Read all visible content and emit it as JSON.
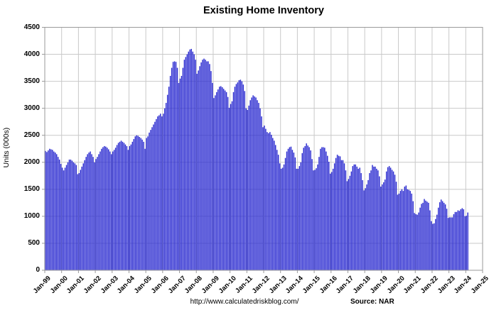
{
  "title": "Existing Home Inventory",
  "footer": {
    "url": "http://www.calculatedriskblog.com/",
    "source": "Source: NAR"
  },
  "chart_data": {
    "type": "bar",
    "title": "Existing Home Inventory",
    "xlabel": "",
    "ylabel": "Units (000s)",
    "ylim": [
      0,
      4500
    ],
    "ytick_step": 500,
    "y_tick_labels": [
      "0",
      "500",
      "1000",
      "1500",
      "2000",
      "2500",
      "3000",
      "3500",
      "4000",
      "4500"
    ],
    "x_tick_labels": [
      "Jan-99",
      "Jan-00",
      "Jan-01",
      "Jan-02",
      "Jan-03",
      "Jan-04",
      "Jan-05",
      "Jan-06",
      "Jan-07",
      "Jan-08",
      "Jan-09",
      "Jan-10",
      "Jan-11",
      "Jan-12",
      "Jan-13",
      "Jan-14",
      "Jan-15",
      "Jan-16",
      "Jan-17",
      "Jan-18",
      "Jan-19",
      "Jan-20",
      "Jan-21",
      "Jan-22",
      "Jan-23",
      "Jan-24",
      "Jan-25"
    ],
    "x_axis_span_months": 312,
    "frequency": "monthly",
    "start_month": "Jan-1999",
    "end_month": "Feb-2024",
    "grid": true,
    "legend": "none",
    "bar_color": "#2b2bd0",
    "gridline_color": "#c9c9c9",
    "frame_color": "#9a9a9a",
    "series": [
      {
        "name": "Existing Home Inventory (000s)",
        "values": [
          2210,
          2190,
          2220,
          2250,
          2240,
          2230,
          2200,
          2180,
          2150,
          2100,
          2050,
          1970,
          1900,
          1850,
          1900,
          1950,
          2000,
          2050,
          2050,
          2030,
          2000,
          1980,
          1950,
          1780,
          1800,
          1860,
          1920,
          1980,
          2040,
          2100,
          2150,
          2180,
          2200,
          2150,
          2100,
          2000,
          2060,
          2100,
          2150,
          2200,
          2250,
          2280,
          2300,
          2290,
          2270,
          2240,
          2200,
          2150,
          2200,
          2230,
          2270,
          2320,
          2360,
          2380,
          2400,
          2380,
          2360,
          2330,
          2300,
          2230,
          2300,
          2330,
          2380,
          2430,
          2480,
          2500,
          2490,
          2470,
          2450,
          2420,
          2380,
          2250,
          2450,
          2480,
          2550,
          2600,
          2650,
          2700,
          2750,
          2800,
          2850,
          2870,
          2900,
          2850,
          2900,
          3000,
          3100,
          3250,
          3400,
          3600,
          3750,
          3860,
          3870,
          3860,
          3750,
          3470,
          3550,
          3600,
          3750,
          3900,
          3950,
          4000,
          4050,
          4090,
          4100,
          4050,
          4000,
          3900,
          3640,
          3700,
          3780,
          3850,
          3900,
          3920,
          3900,
          3870,
          3870,
          3820,
          3690,
          3470,
          3190,
          3240,
          3300,
          3350,
          3400,
          3410,
          3390,
          3360,
          3330,
          3300,
          3210,
          3010,
          3080,
          3130,
          3300,
          3400,
          3450,
          3480,
          3520,
          3530,
          3500,
          3440,
          3320,
          3000,
          2970,
          3050,
          3150,
          3200,
          3240,
          3220,
          3200,
          3150,
          3100,
          3000,
          2850,
          2650,
          2680,
          2620,
          2560,
          2540,
          2560,
          2510,
          2450,
          2400,
          2320,
          2230,
          2140,
          1980,
          1880,
          1900,
          1960,
          2080,
          2200,
          2250,
          2280,
          2290,
          2230,
          2180,
          2090,
          1880,
          1880,
          1930,
          2000,
          2170,
          2270,
          2300,
          2350,
          2310,
          2280,
          2220,
          2060,
          1850,
          1860,
          1890,
          1960,
          2100,
          2250,
          2280,
          2280,
          2270,
          2200,
          2120,
          2010,
          1790,
          1820,
          1880,
          1980,
          2080,
          2140,
          2120,
          2110,
          2040,
          2040,
          1980,
          1850,
          1650,
          1690,
          1750,
          1830,
          1930,
          1960,
          1960,
          1920,
          1880,
          1900,
          1800,
          1670,
          1480,
          1520,
          1590,
          1670,
          1800,
          1850,
          1950,
          1920,
          1920,
          1880,
          1850,
          1740,
          1550,
          1590,
          1630,
          1680,
          1830,
          1910,
          1930,
          1900,
          1860,
          1830,
          1770,
          1640,
          1400,
          1420,
          1470,
          1500,
          1470,
          1550,
          1570,
          1500,
          1490,
          1470,
          1420,
          1280,
          1060,
          1040,
          1030,
          1070,
          1160,
          1230,
          1250,
          1320,
          1290,
          1270,
          1250,
          1110,
          910,
          860,
          870,
          950,
          1030,
          1160,
          1260,
          1310,
          1280,
          1250,
          1220,
          1140,
          970,
          980,
          980,
          980,
          1040,
          1080,
          1080,
          1110,
          1100,
          1130,
          1150,
          1130,
          1000,
          1010,
          1070
        ]
      }
    ]
  }
}
